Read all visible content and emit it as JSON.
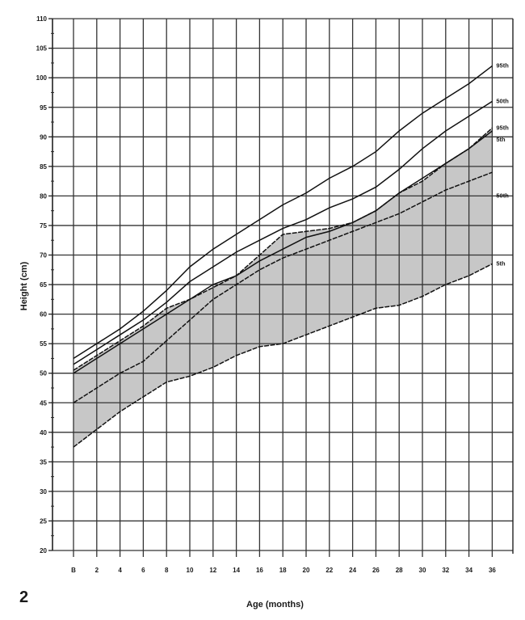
{
  "figure_label": "2",
  "chart_data": {
    "type": "line",
    "title": "",
    "xlabel": "Age (months)",
    "ylabel": "Height (cm)",
    "x_ticks": [
      "B",
      "2",
      "4",
      "6",
      "8",
      "10",
      "12",
      "14",
      "16",
      "18",
      "20",
      "22",
      "24",
      "26",
      "28",
      "30",
      "32",
      "34",
      "36"
    ],
    "x_values": [
      0,
      2,
      4,
      6,
      8,
      10,
      12,
      14,
      16,
      18,
      20,
      22,
      24,
      26,
      28,
      30,
      32,
      34,
      36
    ],
    "y_ticks": [
      20,
      25,
      30,
      35,
      40,
      45,
      50,
      55,
      60,
      65,
      70,
      75,
      80,
      85,
      90,
      95,
      100,
      105,
      110
    ],
    "xlim": [
      0,
      36
    ],
    "ylim": [
      20,
      110
    ],
    "grid": true,
    "legend_position": "inline-right",
    "series": [
      {
        "name": "95th",
        "label": "95th",
        "group": "reference",
        "x": [
          0,
          2,
          4,
          6,
          8,
          10,
          12,
          14,
          16,
          18,
          20,
          22,
          24,
          26,
          28,
          30,
          32,
          34,
          36
        ],
        "values": [
          52.5,
          55,
          57.5,
          60.5,
          64,
          68,
          71,
          73.5,
          76,
          78.5,
          80.5,
          83,
          85,
          87.5,
          91,
          94,
          96.5,
          99,
          102
        ]
      },
      {
        "name": "50th",
        "label": "50th",
        "group": "reference",
        "x": [
          0,
          2,
          4,
          6,
          8,
          10,
          12,
          14,
          16,
          18,
          20,
          22,
          24,
          26,
          28,
          30,
          32,
          34,
          36
        ],
        "values": [
          51.5,
          54,
          56.5,
          59,
          62,
          65.5,
          68,
          70.5,
          72.5,
          74.5,
          76,
          78,
          79.5,
          81.5,
          84.5,
          88,
          91,
          93.5,
          96
        ]
      },
      {
        "name": "5th",
        "label": "5th",
        "group": "reference",
        "x": [
          0,
          2,
          4,
          6,
          8,
          10,
          12,
          14,
          16,
          18,
          20,
          22,
          24,
          26,
          28,
          30,
          32,
          34,
          36
        ],
        "values": [
          50,
          52.5,
          55,
          57.5,
          60,
          62.5,
          65,
          66.5,
          69,
          71,
          73,
          74,
          75.5,
          77.5,
          80.5,
          83,
          85.5,
          88,
          91
        ]
      },
      {
        "name": "95th (patient range)",
        "label": "95th",
        "group": "shaded",
        "x": [
          0,
          2,
          4,
          6,
          8,
          10,
          12,
          14,
          16,
          18,
          20,
          22,
          24,
          26,
          28,
          30,
          32,
          34,
          36
        ],
        "values": [
          50.5,
          53,
          55.5,
          58,
          61,
          62.5,
          64.5,
          66.5,
          70,
          73.5,
          74,
          74.5,
          75.5,
          77.5,
          80.5,
          82.5,
          85.5,
          88,
          91.5
        ]
      },
      {
        "name": "50th (patient range)",
        "label": "50th",
        "group": "shaded",
        "x": [
          0,
          2,
          4,
          6,
          8,
          10,
          12,
          14,
          16,
          18,
          20,
          22,
          24,
          26,
          28,
          30,
          32,
          34,
          36
        ],
        "values": [
          45,
          47.5,
          50,
          52,
          55.5,
          59,
          62.5,
          65,
          67.5,
          69.5,
          71,
          72.5,
          74,
          75.5,
          77,
          79,
          81,
          82.5,
          84
        ]
      },
      {
        "name": "5th (patient range)",
        "label": "5th",
        "group": "shaded",
        "x": [
          0,
          2,
          4,
          6,
          8,
          10,
          12,
          14,
          16,
          18,
          20,
          22,
          24,
          26,
          28,
          30,
          32,
          34,
          36
        ],
        "values": [
          37.5,
          40.5,
          43.5,
          46,
          48.5,
          49.5,
          51,
          53,
          54.5,
          55,
          56.5,
          58,
          59.5,
          61,
          61.5,
          63,
          65,
          66.5,
          68.5
        ]
      }
    ],
    "right_labels": [
      {
        "text": "95th",
        "y": 102
      },
      {
        "text": "50th",
        "y": 96
      },
      {
        "text": "95th",
        "y": 91.5
      },
      {
        "text": "5th",
        "y": 89.5
      },
      {
        "text": "50th",
        "y": 80
      },
      {
        "text": "5th",
        "y": 68.5
      }
    ]
  }
}
